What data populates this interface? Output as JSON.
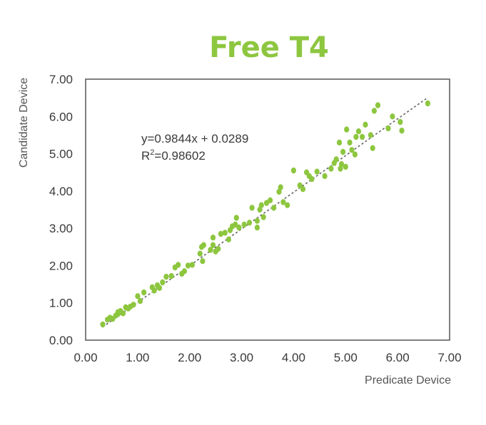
{
  "chart_data": {
    "type": "scatter",
    "title": "Free T4",
    "xlabel": "Predicate Device",
    "ylabel": "Candidate Device",
    "xlim": [
      0,
      7
    ],
    "ylim": [
      0,
      7
    ],
    "x_ticks": [
      "0.00",
      "1.00",
      "2.00",
      "3.00",
      "4.00",
      "5.00",
      "6.00",
      "7.00"
    ],
    "y_ticks": [
      "0.00",
      "1.00",
      "2.00",
      "3.00",
      "4.00",
      "5.00",
      "6.00",
      "7.00"
    ],
    "grid": false,
    "point_color": "#8dc63f",
    "trendline": {
      "slope": 0.9844,
      "intercept": 0.0289,
      "x_range": [
        0.33,
        6.55
      ],
      "color": "#666666",
      "equation": "y=0.9844x + 0.0289",
      "r2_prefix": "R",
      "r2_sup": "2",
      "r2_value": "=0.98602"
    },
    "points": [
      [
        0.33,
        0.42
      ],
      [
        0.42,
        0.55
      ],
      [
        0.47,
        0.6
      ],
      [
        0.52,
        0.57
      ],
      [
        0.58,
        0.66
      ],
      [
        0.62,
        0.7
      ],
      [
        0.67,
        0.78
      ],
      [
        0.72,
        0.72
      ],
      [
        0.77,
        0.88
      ],
      [
        0.82,
        0.85
      ],
      [
        0.86,
        0.9
      ],
      [
        0.92,
        0.95
      ],
      [
        1.0,
        1.18
      ],
      [
        1.12,
        1.28
      ],
      [
        1.28,
        1.42
      ],
      [
        1.32,
        1.33
      ],
      [
        1.38,
        1.47
      ],
      [
        1.42,
        1.4
      ],
      [
        1.48,
        1.55
      ],
      [
        1.55,
        1.7
      ],
      [
        1.65,
        1.72
      ],
      [
        1.72,
        1.95
      ],
      [
        1.78,
        2.02
      ],
      [
        1.85,
        1.78
      ],
      [
        1.97,
        2.0
      ],
      [
        2.05,
        2.02
      ],
      [
        2.2,
        2.32
      ],
      [
        2.23,
        2.5
      ],
      [
        2.25,
        2.12
      ],
      [
        2.27,
        2.55
      ],
      [
        2.4,
        2.42
      ],
      [
        2.45,
        2.75
      ],
      [
        2.5,
        2.38
      ],
      [
        2.55,
        2.45
      ],
      [
        2.6,
        2.85
      ],
      [
        2.68,
        2.88
      ],
      [
        2.75,
        2.7
      ],
      [
        2.78,
        2.95
      ],
      [
        2.82,
        3.05
      ],
      [
        2.88,
        3.1
      ],
      [
        2.9,
        3.28
      ],
      [
        2.95,
        3.02
      ],
      [
        3.05,
        3.1
      ],
      [
        3.15,
        3.15
      ],
      [
        3.2,
        3.55
      ],
      [
        3.3,
        3.2
      ],
      [
        3.35,
        3.5
      ],
      [
        3.38,
        3.62
      ],
      [
        3.42,
        3.3
      ],
      [
        3.48,
        3.68
      ],
      [
        3.55,
        3.75
      ],
      [
        3.62,
        3.55
      ],
      [
        3.72,
        3.98
      ],
      [
        3.75,
        4.1
      ],
      [
        3.8,
        3.7
      ],
      [
        3.88,
        3.62
      ],
      [
        4.0,
        4.55
      ],
      [
        4.12,
        4.15
      ],
      [
        4.25,
        4.5
      ],
      [
        4.3,
        4.4
      ],
      [
        4.35,
        4.32
      ],
      [
        4.45,
        4.52
      ],
      [
        4.6,
        4.4
      ],
      [
        4.72,
        4.6
      ],
      [
        4.78,
        4.75
      ],
      [
        4.82,
        4.85
      ],
      [
        4.88,
        5.3
      ],
      [
        4.9,
        4.6
      ],
      [
        4.92,
        4.72
      ],
      [
        4.95,
        5.05
      ],
      [
        5.0,
        4.65
      ],
      [
        5.02,
        5.65
      ],
      [
        5.08,
        5.3
      ],
      [
        5.12,
        5.1
      ],
      [
        5.18,
        4.98
      ],
      [
        5.2,
        5.45
      ],
      [
        5.25,
        5.6
      ],
      [
        5.32,
        5.45
      ],
      [
        5.38,
        5.78
      ],
      [
        5.48,
        5.5
      ],
      [
        5.52,
        5.15
      ],
      [
        5.55,
        6.15
      ],
      [
        5.62,
        6.3
      ],
      [
        5.82,
        5.68
      ],
      [
        5.9,
        6.0
      ],
      [
        6.05,
        5.85
      ],
      [
        6.08,
        5.62
      ],
      [
        6.58,
        6.35
      ],
      [
        3.3,
        3.02
      ],
      [
        2.45,
        2.55
      ],
      [
        1.9,
        1.85
      ],
      [
        4.18,
        4.05
      ],
      [
        1.05,
        1.05
      ],
      [
        0.62,
        0.75
      ]
    ]
  }
}
